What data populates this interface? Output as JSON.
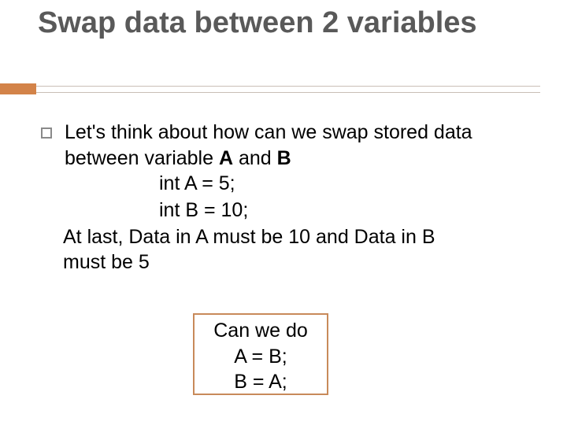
{
  "title": "Swap data between 2 variables",
  "bullet": {
    "line1": "Let's think about how can we swap stored data",
    "line2_pre": "between variable ",
    "varA": "A",
    "mid": " and ",
    "varB": "B"
  },
  "code": {
    "l1": "int A = 5;",
    "l2": "int B  = 10;"
  },
  "final": {
    "l1": " At last, Data in A must be 10 and Data in B",
    "l2": "must be 5"
  },
  "box": {
    "l1": "Can we do",
    "l2": "A = B;",
    "l3": "B = A;"
  },
  "colors": {
    "accent": "#d38349",
    "box_border": "#c88a5a",
    "title_color": "#595959",
    "grey_line": "#c9bfb6"
  }
}
